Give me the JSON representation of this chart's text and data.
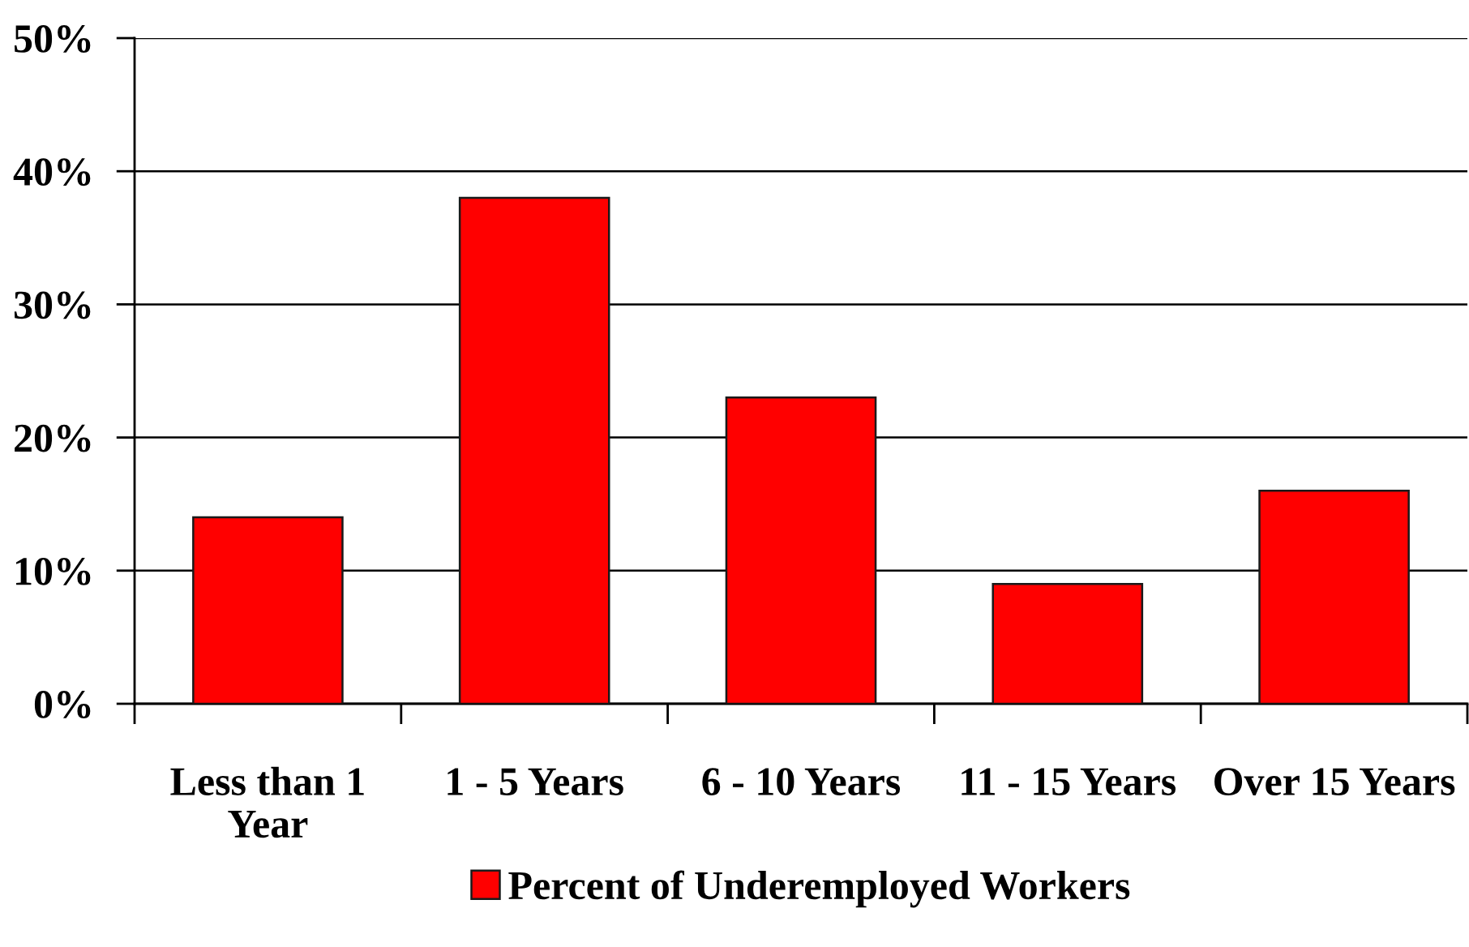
{
  "chart_data": {
    "type": "bar",
    "categories": [
      "Less than 1 Year",
      "1 - 5 Years",
      "6 - 10 Years",
      "11 - 15 Years",
      "Over 15 Years"
    ],
    "series": [
      {
        "name": "Percent of Underemployed Workers",
        "color": "#ff0000",
        "values": [
          14,
          38,
          23,
          9,
          16
        ]
      }
    ],
    "ylim": [
      0,
      50
    ],
    "yticks": [
      {
        "value": 0,
        "label": "0%"
      },
      {
        "value": 10,
        "label": "10%"
      },
      {
        "value": 20,
        "label": "20%"
      },
      {
        "value": 30,
        "label": "30%"
      },
      {
        "value": 40,
        "label": "40%"
      },
      {
        "value": 50,
        "label": "50%"
      }
    ],
    "grid": "y",
    "legend": "bottom"
  }
}
